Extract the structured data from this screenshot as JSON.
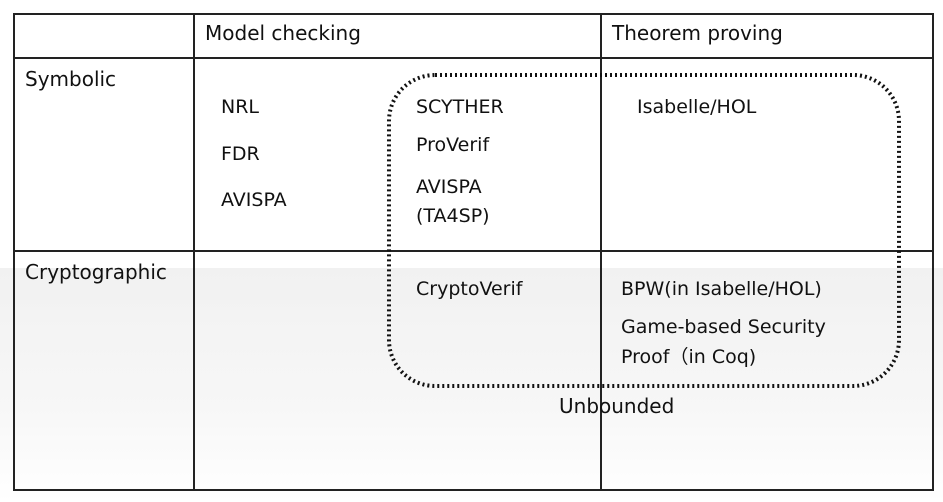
{
  "headers": {
    "col_model_checking": "Model checking",
    "col_theorem_proving": "Theorem proving"
  },
  "rows": {
    "symbolic": "Symbolic",
    "cryptographic": "Cryptographic"
  },
  "cells": {
    "symbolic_mc_bounded": [
      "NRL",
      "FDR",
      "AVISPA"
    ],
    "symbolic_mc_unbounded": [
      "SCYTHER",
      "ProVerif",
      "AVISPA",
      "(TA4SP)"
    ],
    "symbolic_tp": [
      "Isabelle/HOL"
    ],
    "crypto_mc_unbounded": [
      "CryptoVerif"
    ],
    "crypto_tp": [
      "BPW(in Isabelle/HOL)",
      "Game-based Security",
      "Proof（in Coq)"
    ]
  },
  "boundary_label": "Unbounded",
  "colors": {
    "line": "#222222",
    "text": "#111111",
    "band": "#f3f3f3"
  }
}
